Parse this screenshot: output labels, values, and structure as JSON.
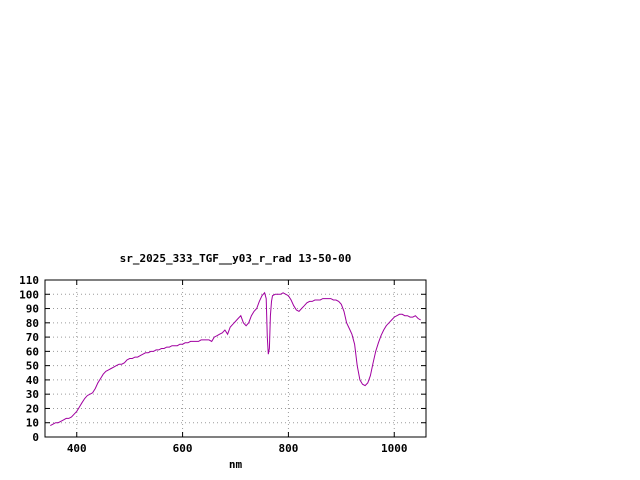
{
  "chart": {
    "title": "sr_2025_333_TGF__y03_r_rad 13-50-00",
    "xlabel": "nm"
  },
  "chart_data": {
    "type": "line",
    "title": "sr_2025_333_TGF__y03_r_rad 13-50-00",
    "xlabel": "nm",
    "ylabel": "",
    "xlim": [
      340,
      1060
    ],
    "ylim": [
      0,
      110
    ],
    "x_ticks": [
      400,
      600,
      800,
      1000
    ],
    "y_ticks": [
      0,
      10,
      20,
      30,
      40,
      50,
      60,
      70,
      80,
      90,
      100,
      110
    ],
    "grid": true,
    "legend": "none",
    "line_color": "#a000a0",
    "series": [
      {
        "name": "sr_2025_333_TGF__y03_r_rad",
        "points": [
          [
            350,
            8
          ],
          [
            355,
            9
          ],
          [
            360,
            10
          ],
          [
            365,
            10
          ],
          [
            370,
            11
          ],
          [
            375,
            12
          ],
          [
            380,
            13
          ],
          [
            385,
            13
          ],
          [
            390,
            14
          ],
          [
            395,
            16
          ],
          [
            400,
            18
          ],
          [
            405,
            21
          ],
          [
            410,
            24
          ],
          [
            415,
            27
          ],
          [
            420,
            29
          ],
          [
            425,
            30
          ],
          [
            430,
            31
          ],
          [
            435,
            34
          ],
          [
            440,
            38
          ],
          [
            445,
            41
          ],
          [
            450,
            44
          ],
          [
            455,
            46
          ],
          [
            460,
            47
          ],
          [
            465,
            48
          ],
          [
            470,
            49
          ],
          [
            475,
            50
          ],
          [
            480,
            51
          ],
          [
            485,
            51
          ],
          [
            490,
            52
          ],
          [
            495,
            54
          ],
          [
            500,
            55
          ],
          [
            505,
            55
          ],
          [
            510,
            56
          ],
          [
            515,
            56
          ],
          [
            520,
            57
          ],
          [
            525,
            58
          ],
          [
            530,
            59
          ],
          [
            535,
            59
          ],
          [
            540,
            60
          ],
          [
            545,
            60
          ],
          [
            550,
            61
          ],
          [
            555,
            61
          ],
          [
            560,
            62
          ],
          [
            565,
            62
          ],
          [
            570,
            63
          ],
          [
            575,
            63
          ],
          [
            580,
            64
          ],
          [
            585,
            64
          ],
          [
            590,
            64
          ],
          [
            595,
            65
          ],
          [
            600,
            65
          ],
          [
            605,
            66
          ],
          [
            610,
            66
          ],
          [
            615,
            67
          ],
          [
            620,
            67
          ],
          [
            625,
            67
          ],
          [
            630,
            67
          ],
          [
            635,
            68
          ],
          [
            640,
            68
          ],
          [
            645,
            68
          ],
          [
            650,
            68
          ],
          [
            655,
            67
          ],
          [
            660,
            70
          ],
          [
            665,
            71
          ],
          [
            670,
            72
          ],
          [
            675,
            73
          ],
          [
            680,
            75
          ],
          [
            685,
            72
          ],
          [
            690,
            77
          ],
          [
            695,
            79
          ],
          [
            700,
            81
          ],
          [
            705,
            83
          ],
          [
            710,
            85
          ],
          [
            715,
            80
          ],
          [
            720,
            78
          ],
          [
            725,
            80
          ],
          [
            730,
            85
          ],
          [
            735,
            88
          ],
          [
            740,
            90
          ],
          [
            745,
            95
          ],
          [
            750,
            99
          ],
          [
            755,
            101
          ],
          [
            758,
            97
          ],
          [
            760,
            70
          ],
          [
            762,
            58
          ],
          [
            764,
            62
          ],
          [
            766,
            85
          ],
          [
            768,
            95
          ],
          [
            770,
            99
          ],
          [
            775,
            100
          ],
          [
            780,
            100
          ],
          [
            785,
            100
          ],
          [
            790,
            101
          ],
          [
            795,
            100
          ],
          [
            800,
            99
          ],
          [
            805,
            96
          ],
          [
            810,
            92
          ],
          [
            815,
            89
          ],
          [
            820,
            88
          ],
          [
            825,
            90
          ],
          [
            830,
            92
          ],
          [
            835,
            94
          ],
          [
            840,
            95
          ],
          [
            845,
            95
          ],
          [
            850,
            96
          ],
          [
            855,
            96
          ],
          [
            860,
            96
          ],
          [
            865,
            97
          ],
          [
            870,
            97
          ],
          [
            875,
            97
          ],
          [
            880,
            97
          ],
          [
            885,
            96
          ],
          [
            890,
            96
          ],
          [
            895,
            95
          ],
          [
            900,
            93
          ],
          [
            905,
            88
          ],
          [
            910,
            80
          ],
          [
            915,
            76
          ],
          [
            920,
            72
          ],
          [
            925,
            65
          ],
          [
            930,
            50
          ],
          [
            935,
            40
          ],
          [
            940,
            37
          ],
          [
            945,
            36
          ],
          [
            950,
            38
          ],
          [
            955,
            43
          ],
          [
            960,
            52
          ],
          [
            965,
            60
          ],
          [
            970,
            66
          ],
          [
            975,
            71
          ],
          [
            980,
            75
          ],
          [
            985,
            78
          ],
          [
            990,
            80
          ],
          [
            995,
            82
          ],
          [
            1000,
            84
          ],
          [
            1005,
            85
          ],
          [
            1010,
            86
          ],
          [
            1015,
            86
          ],
          [
            1020,
            85
          ],
          [
            1025,
            85
          ],
          [
            1030,
            84
          ],
          [
            1035,
            84
          ],
          [
            1040,
            85
          ],
          [
            1045,
            83
          ],
          [
            1050,
            82
          ]
        ]
      }
    ]
  }
}
